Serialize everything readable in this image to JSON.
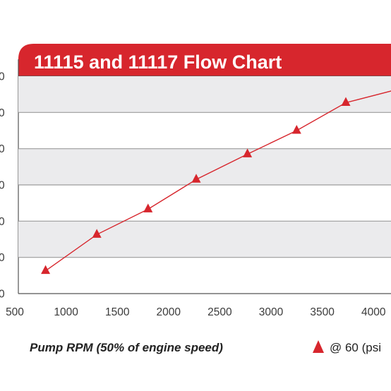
{
  "chart_data": {
    "type": "line",
    "title": "11115 and 11117 Flow Chart",
    "xlabel": "Pump RPM (50% of engine speed)",
    "ylabel": "",
    "xlim": [
      500,
      4000
    ],
    "x_ticks": [
      "500",
      "1000",
      "1500",
      "2000",
      "2500",
      "3000",
      "3500",
      "4000"
    ],
    "ylim": [
      0,
      6
    ],
    "y_ticks": [
      "0",
      "0",
      "0",
      "0",
      "0",
      "0",
      "0"
    ],
    "grid": true,
    "legend_position": "bottom-right",
    "series": [
      {
        "name": "@ 60 (psi",
        "marker": "triangle",
        "x": [
          800,
          1300,
          1800,
          2270,
          2770,
          3250,
          3730,
          4250
        ],
        "y": [
          0.63,
          1.63,
          2.33,
          3.15,
          3.85,
          4.5,
          5.27,
          5.65
        ]
      }
    ],
    "colors": {
      "accent": "#d7262d",
      "band": "#ebebed",
      "grid": "#9c9c9c",
      "axis": "#555555"
    }
  }
}
